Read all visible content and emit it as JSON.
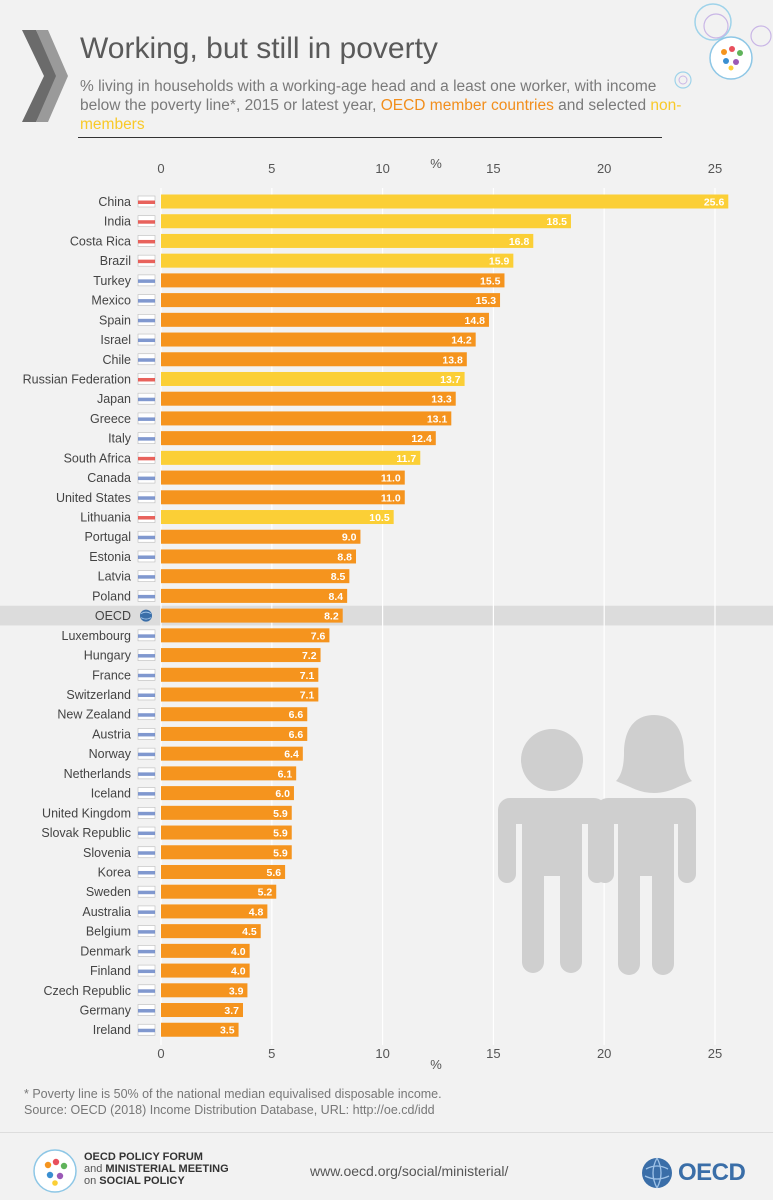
{
  "header": {
    "title": "Working, but still in poverty",
    "subtitle_line1": "% living in households with a working-age head and a least one worker, with income",
    "subtitle_line2_prefix": "below the poverty line*, 2015 or latest year, ",
    "subtitle_members": "OECD member countries",
    "subtitle_and": " and selected ",
    "subtitle_nonmembers": "non-members"
  },
  "colors": {
    "member": "#f5941e",
    "non_member": "#fbcf36",
    "oecd_highlight_band": "#dcdcdc",
    "gridline": "#ffffff",
    "text": "#555555"
  },
  "chart_data": {
    "type": "bar",
    "orientation": "horizontal",
    "xlabel": "%",
    "xlim": [
      0,
      25
    ],
    "xticks": [
      0,
      5,
      10,
      15,
      20,
      25
    ],
    "categories": [
      "China",
      "India",
      "Costa Rica",
      "Brazil",
      "Turkey",
      "Mexico",
      "Spain",
      "Israel",
      "Chile",
      "Russian Federation",
      "Japan",
      "Greece",
      "Italy",
      "South Africa",
      "Canada",
      "United States",
      "Lithuania",
      "Portugal",
      "Estonia",
      "Latvia",
      "Poland",
      "OECD",
      "Luxembourg",
      "Hungary",
      "France",
      "Switzerland",
      "New Zealand",
      "Austria",
      "Norway",
      "Netherlands",
      "Iceland",
      "United Kingdom",
      "Slovak Republic",
      "Slovenia",
      "Korea",
      "Sweden",
      "Australia",
      "Belgium",
      "Denmark",
      "Finland",
      "Czech Republic",
      "Germany",
      "Ireland"
    ],
    "values": [
      25.6,
      18.5,
      16.8,
      15.9,
      15.5,
      15.3,
      14.8,
      14.2,
      13.8,
      13.7,
      13.3,
      13.1,
      12.4,
      11.7,
      11.0,
      11.0,
      10.5,
      9.0,
      8.8,
      8.5,
      8.4,
      8.2,
      7.6,
      7.2,
      7.1,
      7.1,
      6.6,
      6.6,
      6.4,
      6.1,
      6.0,
      5.9,
      5.9,
      5.9,
      5.6,
      5.2,
      4.8,
      4.5,
      4.0,
      4.0,
      3.9,
      3.7,
      3.5
    ],
    "value_labels": [
      "25.6",
      "18.5",
      "16.8",
      "15.9",
      "15.5",
      "15.3",
      "14.8",
      "14.2",
      "13.8",
      "13.7",
      "13.3",
      "13.1",
      "12.4",
      "11.7",
      "11.0",
      "11.0",
      "10.5",
      "9.0",
      "8.8",
      "8.5",
      "8.4",
      "8.2",
      "7.6",
      "7.2",
      "7.1",
      "7.1",
      "6.6",
      "6.6",
      "6.4",
      "6.1",
      "6.0",
      "5.9",
      "5.9",
      "5.9",
      "5.6",
      "5.2",
      "4.8",
      "4.5",
      "4.0",
      "4.0",
      "3.9",
      "3.7",
      "3.5"
    ],
    "group": [
      "non",
      "non",
      "non",
      "non",
      "mem",
      "mem",
      "mem",
      "mem",
      "mem",
      "non",
      "mem",
      "mem",
      "mem",
      "non",
      "mem",
      "mem",
      "non",
      "mem",
      "mem",
      "mem",
      "mem",
      "oecd",
      "mem",
      "mem",
      "mem",
      "mem",
      "mem",
      "mem",
      "mem",
      "mem",
      "mem",
      "mem",
      "mem",
      "mem",
      "mem",
      "mem",
      "mem",
      "mem",
      "mem",
      "mem",
      "mem",
      "mem",
      "mem"
    ],
    "highlight": "OECD"
  },
  "footnote": {
    "line1": "* Poverty line is 50% of the national median equivalised disposable income.",
    "line2": "Source: OECD (2018) Income Distribution Database, URL: http://oe.cd/idd"
  },
  "footer": {
    "forum_line1": "OECD POLICY FORUM",
    "forum_line2_a": "and ",
    "forum_line2_b": "MINISTERIAL MEETING",
    "forum_line3_a": "on ",
    "forum_line3_b": "SOCIAL POLICY",
    "url": "www.oecd.org/social/ministerial/",
    "oecd_logo_text": "OECD"
  }
}
